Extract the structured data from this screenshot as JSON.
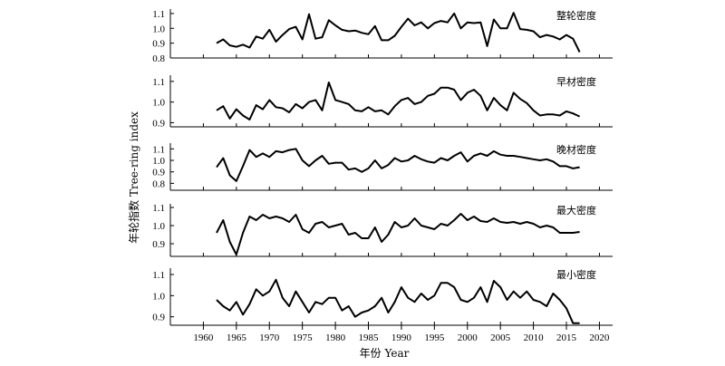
{
  "chart_data": {
    "type": "line",
    "xlabel": "年份 Year",
    "ylabel": "年轮指数 Tree-ring index",
    "xlim": [
      1955,
      2022
    ],
    "x_ticks": [
      1960,
      1965,
      1970,
      1975,
      1980,
      1985,
      1990,
      1995,
      2000,
      2005,
      2010,
      2015,
      2020
    ],
    "panels": [
      {
        "title": "整轮密度",
        "ylim": [
          0.8,
          1.13
        ],
        "y_ticks": [
          0.8,
          0.9,
          1.0,
          1.1
        ],
        "x": [
          1962,
          1963,
          1964,
          1965,
          1966,
          1967,
          1968,
          1969,
          1970,
          1971,
          1972,
          1973,
          1974,
          1975,
          1976,
          1977,
          1978,
          1979,
          1980,
          1981,
          1982,
          1983,
          1984,
          1985,
          1986,
          1987,
          1988,
          1989,
          1990,
          1991,
          1992,
          1993,
          1994,
          1995,
          1996,
          1997,
          1998,
          1999,
          2000,
          2001,
          2002,
          2003,
          2004,
          2005,
          2006,
          2007,
          2008,
          2009,
          2010,
          2011,
          2012,
          2013,
          2014,
          2015,
          2016,
          2017
        ],
        "values": [
          0.9,
          0.925,
          0.885,
          0.875,
          0.89,
          0.87,
          0.945,
          0.93,
          0.99,
          0.91,
          0.955,
          0.995,
          1.01,
          0.925,
          1.095,
          0.93,
          0.94,
          1.055,
          1.02,
          0.99,
          0.98,
          0.985,
          0.97,
          0.96,
          1.015,
          0.92,
          0.92,
          0.95,
          1.01,
          1.065,
          1.02,
          1.04,
          1.0,
          1.035,
          1.05,
          1.04,
          1.1,
          1.0,
          1.04,
          1.035,
          1.04,
          0.88,
          1.06,
          1.0,
          1.0,
          1.105,
          0.995,
          0.99,
          0.98,
          0.94,
          0.955,
          0.945,
          0.925,
          0.955,
          0.93,
          0.84
        ]
      },
      {
        "title": "早材密度",
        "ylim": [
          0.88,
          1.13
        ],
        "y_ticks": [
          0.9,
          1.0,
          1.1
        ],
        "x": [
          1962,
          1963,
          1964,
          1965,
          1966,
          1967,
          1968,
          1969,
          1970,
          1971,
          1972,
          1973,
          1974,
          1975,
          1976,
          1977,
          1978,
          1979,
          1980,
          1981,
          1982,
          1983,
          1984,
          1985,
          1986,
          1987,
          1988,
          1989,
          1990,
          1991,
          1992,
          1993,
          1994,
          1995,
          1996,
          1997,
          1998,
          1999,
          2000,
          2001,
          2002,
          2003,
          2004,
          2005,
          2006,
          2007,
          2008,
          2009,
          2010,
          2011,
          2012,
          2013,
          2014,
          2015,
          2016,
          2017
        ],
        "values": [
          0.96,
          0.98,
          0.92,
          0.965,
          0.935,
          0.915,
          0.985,
          0.965,
          1.01,
          0.975,
          0.97,
          0.95,
          0.99,
          0.97,
          1.0,
          1.01,
          0.96,
          1.095,
          1.01,
          1.0,
          0.99,
          0.96,
          0.955,
          0.975,
          0.955,
          0.96,
          0.94,
          0.98,
          1.01,
          1.02,
          0.99,
          1.0,
          1.03,
          1.04,
          1.07,
          1.07,
          1.06,
          1.01,
          1.045,
          1.06,
          1.03,
          0.96,
          1.02,
          0.985,
          0.96,
          1.045,
          1.015,
          0.995,
          0.96,
          0.935,
          0.94,
          0.94,
          0.935,
          0.955,
          0.945,
          0.93
        ]
      },
      {
        "title": "晚材密度",
        "ylim": [
          0.74,
          1.15
        ],
        "y_ticks": [
          0.8,
          0.9,
          1.0,
          1.1
        ],
        "x": [
          1962,
          1963,
          1964,
          1965,
          1966,
          1967,
          1968,
          1969,
          1970,
          1971,
          1972,
          1973,
          1974,
          1975,
          1976,
          1977,
          1978,
          1979,
          1980,
          1981,
          1982,
          1983,
          1984,
          1985,
          1986,
          1987,
          1988,
          1989,
          1990,
          1991,
          1992,
          1993,
          1994,
          1995,
          1996,
          1997,
          1998,
          1999,
          2000,
          2001,
          2002,
          2003,
          2004,
          2005,
          2006,
          2007,
          2008,
          2009,
          2010,
          2011,
          2012,
          2013,
          2014,
          2015,
          2016,
          2017
        ],
        "values": [
          0.94,
          1.02,
          0.87,
          0.82,
          0.95,
          1.09,
          1.03,
          1.06,
          1.03,
          1.08,
          1.07,
          1.09,
          1.1,
          1.0,
          0.95,
          1.0,
          1.04,
          0.97,
          0.98,
          0.98,
          0.92,
          0.93,
          0.9,
          0.93,
          1.0,
          0.93,
          0.96,
          1.02,
          0.99,
          1.0,
          1.04,
          1.01,
          0.99,
          0.98,
          1.02,
          1.0,
          1.04,
          1.07,
          0.99,
          1.04,
          1.06,
          1.04,
          1.08,
          1.05,
          1.04,
          1.04,
          1.03,
          1.02,
          1.01,
          1.0,
          1.01,
          0.99,
          0.95,
          0.95,
          0.93,
          0.94
        ]
      },
      {
        "title": "最大密度",
        "ylim": [
          0.83,
          1.12
        ],
        "y_ticks": [
          0.9,
          1.0,
          1.1
        ],
        "x": [
          1962,
          1963,
          1964,
          1965,
          1966,
          1967,
          1968,
          1969,
          1970,
          1971,
          1972,
          1973,
          1974,
          1975,
          1976,
          1977,
          1978,
          1979,
          1980,
          1981,
          1982,
          1983,
          1984,
          1985,
          1986,
          1987,
          1988,
          1989,
          1990,
          1991,
          1992,
          1993,
          1994,
          1995,
          1996,
          1997,
          1998,
          1999,
          2000,
          2001,
          2002,
          2003,
          2004,
          2005,
          2006,
          2007,
          2008,
          2009,
          2010,
          2011,
          2012,
          2013,
          2014,
          2015,
          2016,
          2017
        ],
        "values": [
          0.96,
          1.03,
          0.91,
          0.84,
          0.96,
          1.05,
          1.03,
          1.06,
          1.04,
          1.05,
          1.04,
          1.02,
          1.06,
          0.98,
          0.96,
          1.01,
          1.02,
          0.99,
          1.0,
          1.01,
          0.95,
          0.96,
          0.93,
          0.93,
          0.99,
          0.91,
          0.95,
          1.02,
          0.99,
          1.0,
          1.04,
          1.0,
          0.99,
          0.98,
          1.01,
          1.0,
          1.03,
          1.065,
          1.03,
          1.05,
          1.025,
          1.02,
          1.04,
          1.02,
          1.015,
          1.02,
          1.01,
          1.02,
          1.01,
          0.99,
          1.0,
          0.99,
          0.96,
          0.96,
          0.96,
          0.965
        ]
      },
      {
        "title": "最小密度",
        "ylim": [
          0.86,
          1.13
        ],
        "y_ticks": [
          0.9,
          1.0,
          1.1
        ],
        "x": [
          1962,
          1963,
          1964,
          1965,
          1966,
          1967,
          1968,
          1969,
          1970,
          1971,
          1972,
          1973,
          1974,
          1975,
          1976,
          1977,
          1978,
          1979,
          1980,
          1981,
          1982,
          1983,
          1984,
          1985,
          1986,
          1987,
          1988,
          1989,
          1990,
          1991,
          1992,
          1993,
          1994,
          1995,
          1996,
          1997,
          1998,
          1999,
          2000,
          2001,
          2002,
          2003,
          2004,
          2005,
          2006,
          2007,
          2008,
          2009,
          2010,
          2011,
          2012,
          2013,
          2014,
          2015,
          2016,
          2017
        ],
        "values": [
          0.98,
          0.95,
          0.93,
          0.97,
          0.91,
          0.96,
          1.03,
          1.0,
          1.02,
          1.075,
          0.99,
          0.95,
          1.02,
          0.97,
          0.92,
          0.97,
          0.96,
          0.99,
          0.99,
          0.93,
          0.95,
          0.9,
          0.92,
          0.93,
          0.95,
          0.99,
          0.92,
          0.97,
          1.04,
          0.99,
          0.97,
          1.01,
          0.98,
          1.0,
          1.06,
          1.06,
          1.04,
          0.98,
          0.97,
          0.99,
          1.04,
          0.97,
          1.07,
          1.04,
          0.98,
          1.02,
          0.99,
          1.02,
          0.98,
          0.97,
          0.95,
          1.01,
          0.98,
          0.94,
          0.87,
          0.87
        ]
      }
    ]
  }
}
